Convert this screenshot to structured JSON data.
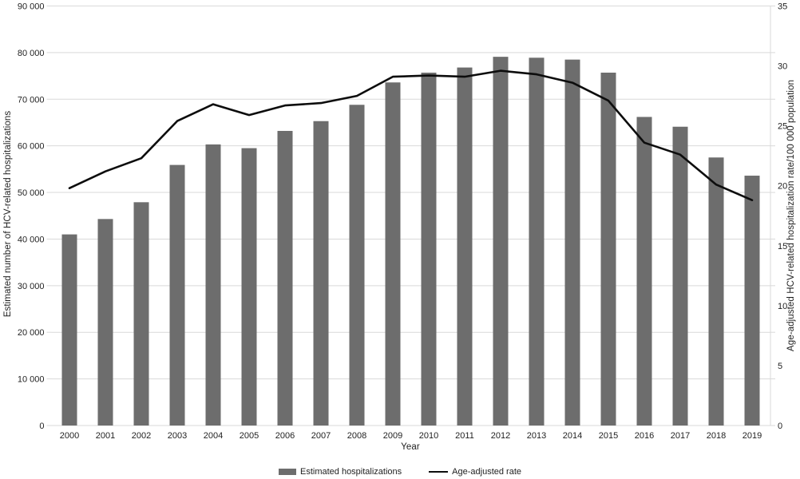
{
  "chart_data": {
    "type": "combo",
    "categories": [
      "2000",
      "2001",
      "2002",
      "2003",
      "2004",
      "2005",
      "2006",
      "2007",
      "2008",
      "2009",
      "2010",
      "2011",
      "2012",
      "2013",
      "2014",
      "2015",
      "2016",
      "2017",
      "2018",
      "2019"
    ],
    "series": [
      {
        "name": "Estimated hospitalizations",
        "type": "bar",
        "axis": "left",
        "color": "#6d6d6d",
        "values": [
          41000,
          44300,
          47900,
          55900,
          60300,
          59500,
          63200,
          65300,
          68800,
          73600,
          75700,
          76800,
          79100,
          78900,
          78500,
          75700,
          66200,
          64100,
          57500,
          53600
        ]
      },
      {
        "name": "Age-adjusted rate",
        "type": "line",
        "axis": "right",
        "color": "#0d0d0d",
        "values": [
          19.8,
          21.2,
          22.3,
          25.4,
          26.8,
          25.9,
          26.7,
          26.9,
          27.5,
          29.1,
          29.2,
          29.1,
          29.6,
          29.3,
          28.6,
          27.1,
          23.6,
          22.6,
          20.1,
          18.8
        ]
      }
    ],
    "xlabel": "Year",
    "left_axis": {
      "label": "Estimated number of HCV-related hospitalizations",
      "min": 0,
      "max": 90000,
      "step": 10000,
      "tick_labels": [
        "0",
        "10 000",
        "20 000",
        "30 000",
        "40 000",
        "50 000",
        "60 000",
        "70 000",
        "80 000",
        "90 000"
      ]
    },
    "right_axis": {
      "label": "Age-adjusted HCV-related hospitalization rate/100 000 population",
      "min": 0,
      "max": 35,
      "step": 5,
      "tick_labels": [
        "0",
        "5",
        "10",
        "15",
        "20",
        "25",
        "30",
        "35"
      ]
    },
    "grid": "horizontal",
    "legend_position": "bottom",
    "colors": {
      "bar": "#6d6d6d",
      "line": "#0d0d0d",
      "gridline": "#d9d9d9",
      "text": "#1f1f1f",
      "background": "#ffffff"
    }
  }
}
